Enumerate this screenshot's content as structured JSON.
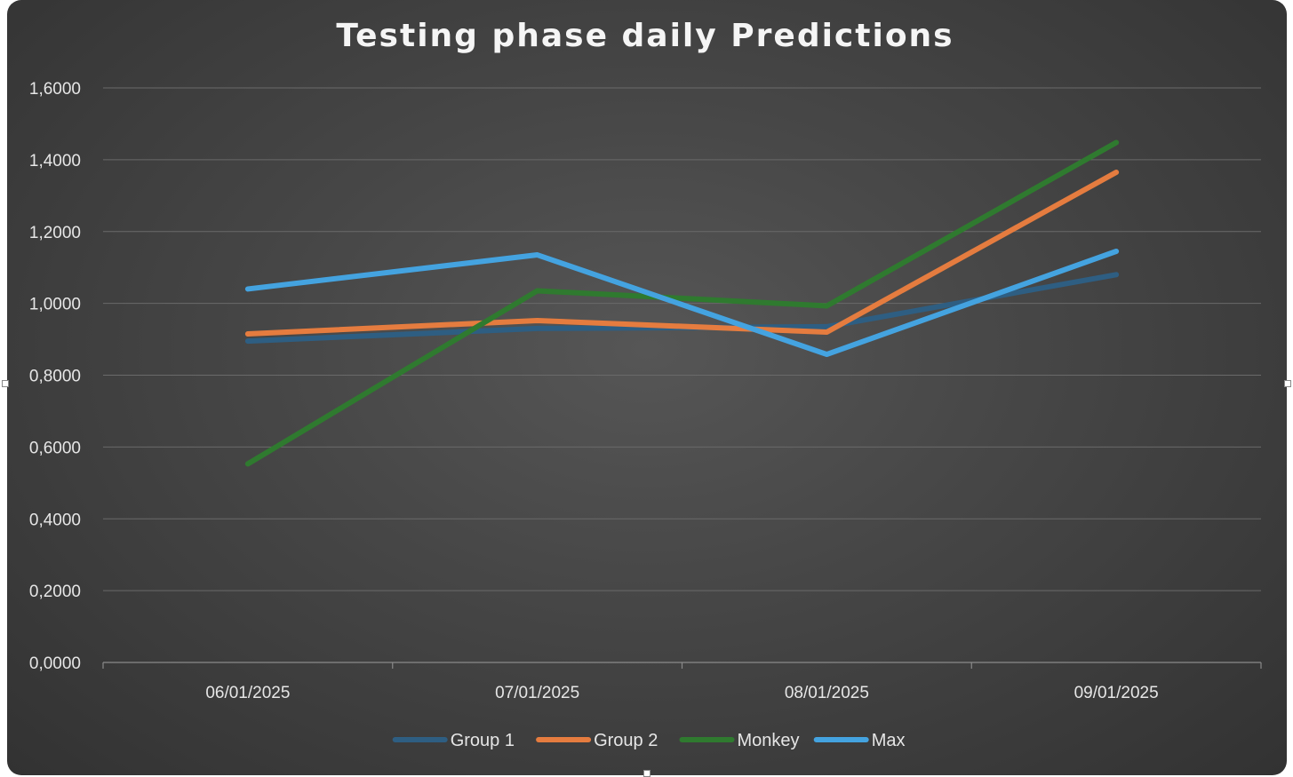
{
  "chart_data": {
    "type": "line",
    "title": "Testing phase daily Predictions",
    "categories": [
      "06/01/2025",
      "07/01/2025",
      "08/01/2025",
      "09/01/2025"
    ],
    "y_tick_labels": [
      "0,0000",
      "0,2000",
      "0,4000",
      "0,6000",
      "0,8000",
      "1,0000",
      "1,2000",
      "1,4000",
      "1,6000"
    ],
    "ylim": [
      0,
      1.6
    ],
    "y_step": 0.2,
    "grid": true,
    "legend_position": "bottom",
    "series": [
      {
        "name": "Group 1",
        "color": "#2e5e82",
        "values": [
          0.895,
          0.93,
          0.935,
          1.08
        ]
      },
      {
        "name": "Group 2",
        "color": "#e57c3f",
        "values": [
          0.915,
          0.952,
          0.92,
          1.365
        ]
      },
      {
        "name": "Monkey",
        "color": "#2f7a2f",
        "values": [
          0.553,
          1.035,
          0.993,
          1.448
        ]
      },
      {
        "name": "Max",
        "color": "#44a3e0",
        "values": [
          1.04,
          1.135,
          0.858,
          1.145
        ]
      }
    ]
  }
}
